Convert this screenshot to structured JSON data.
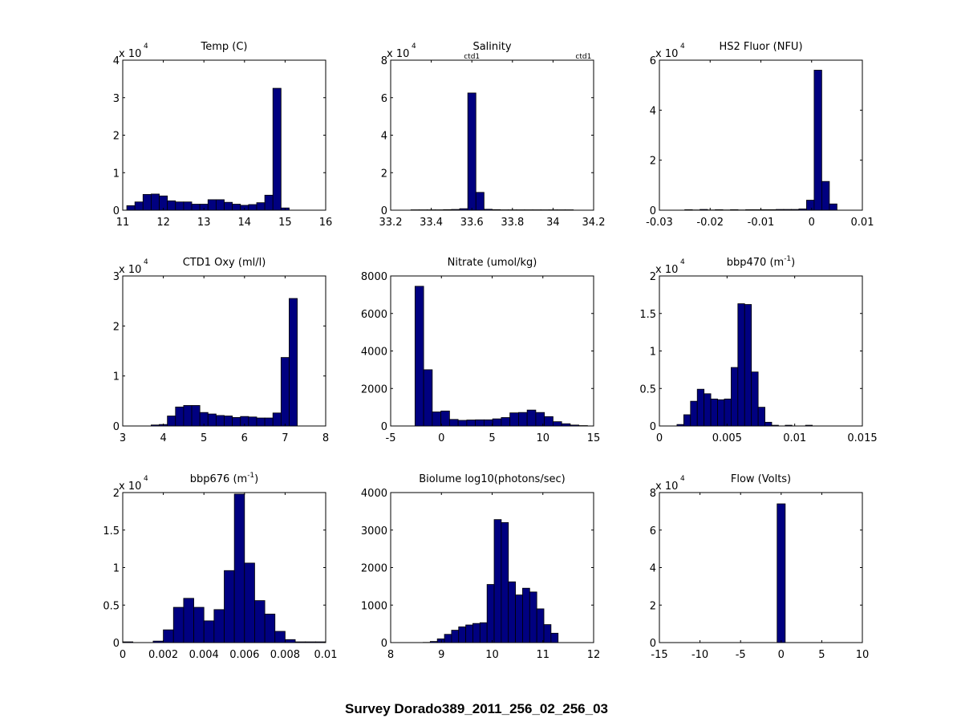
{
  "figure": {
    "supertitle": "Survey Dorado389_2011_256_02_256_03"
  },
  "chart_data": [
    {
      "type": "bar",
      "title": "Temp (C)",
      "exponent_label": "x 10",
      "exponent_power": "4",
      "xlim": [
        11,
        16
      ],
      "ylim": [
        0,
        4
      ],
      "xticks": [
        11,
        12,
        13,
        14,
        15,
        16
      ],
      "xtick_labels": [
        "11",
        "12",
        "13",
        "14",
        "15",
        "16"
      ],
      "yticks": [
        0,
        1,
        2,
        3,
        4
      ],
      "ytick_labels": [
        "0",
        "1",
        "2",
        "3",
        "4"
      ],
      "bin_edges": [
        11.1,
        11.3,
        11.5,
        11.7,
        11.9,
        12.1,
        12.3,
        12.5,
        12.7,
        12.9,
        13.1,
        13.3,
        13.5,
        13.7,
        13.9,
        14.1,
        14.3,
        14.5,
        14.7,
        14.9,
        15.1
      ],
      "values": [
        0.12,
        0.22,
        0.42,
        0.43,
        0.38,
        0.25,
        0.22,
        0.22,
        0.16,
        0.16,
        0.28,
        0.28,
        0.21,
        0.16,
        0.13,
        0.15,
        0.2,
        0.4,
        3.25,
        0.06
      ],
      "annotations": []
    },
    {
      "type": "bar",
      "title": "Salinity",
      "exponent_label": "x 10",
      "exponent_power": "4",
      "xlim": [
        33.2,
        34.2
      ],
      "ylim": [
        0,
        8
      ],
      "xticks": [
        33.2,
        33.4,
        33.6,
        33.8,
        34,
        34.2
      ],
      "xtick_labels": [
        "33.2",
        "33.4",
        "33.6",
        "33.8",
        "34",
        "34.2"
      ],
      "yticks": [
        0,
        2,
        4,
        6,
        8
      ],
      "ytick_labels": [
        "0",
        "2",
        "4",
        "6",
        "8"
      ],
      "bin_edges": [
        33.3,
        33.34,
        33.38,
        33.42,
        33.46,
        33.5,
        33.54,
        33.58,
        33.62,
        33.66,
        33.7,
        33.74,
        33.78,
        33.82,
        33.86,
        33.9,
        33.94,
        33.98,
        34.02,
        34.06,
        34.1
      ],
      "values": [
        0.02,
        0.02,
        0.02,
        0.02,
        0.03,
        0.04,
        0.08,
        6.25,
        0.95,
        0.05,
        0.03,
        0.02,
        0.02,
        0.02,
        0.02,
        0.02,
        0.02,
        0.02,
        0.02,
        0.02
      ],
      "annotations": [
        {
          "text": "ctd1",
          "x": 33.6
        },
        {
          "text": "ctd1",
          "x": 34.15
        }
      ]
    },
    {
      "type": "bar",
      "title": "HS2 Fluor (NFU)",
      "exponent_label": "x 10",
      "exponent_power": "4",
      "xlim": [
        -0.03,
        0.01
      ],
      "ylim": [
        0,
        6
      ],
      "xticks": [
        -0.03,
        -0.02,
        -0.01,
        0,
        0.01
      ],
      "xtick_labels": [
        "-0.03",
        "-0.02",
        "-0.01",
        "0",
        "0.01"
      ],
      "yticks": [
        0,
        2,
        4,
        6
      ],
      "ytick_labels": [
        "0",
        "2",
        "4",
        "6"
      ],
      "bin_edges": [
        -0.025,
        -0.0235,
        -0.022,
        -0.0205,
        -0.019,
        -0.0175,
        -0.016,
        -0.0145,
        -0.013,
        -0.0115,
        -0.01,
        -0.0085,
        -0.007,
        -0.0055,
        -0.004,
        -0.0025,
        -0.001,
        0.0005,
        0.002,
        0.0035,
        0.005
      ],
      "values": [
        0.02,
        0.01,
        0.03,
        0.01,
        0.02,
        0.01,
        0.02,
        0.01,
        0.02,
        0.02,
        0.02,
        0.02,
        0.03,
        0.03,
        0.03,
        0.05,
        0.4,
        5.6,
        1.15,
        0.25
      ],
      "annotations": []
    },
    {
      "type": "bar",
      "title": "CTD1 Oxy (ml/l)",
      "exponent_label": "x 10",
      "exponent_power": "4",
      "xlim": [
        3,
        8
      ],
      "ylim": [
        0,
        3
      ],
      "xticks": [
        3,
        4,
        5,
        6,
        7,
        8
      ],
      "xtick_labels": [
        "3",
        "4",
        "5",
        "6",
        "7",
        "8"
      ],
      "yticks": [
        0,
        1,
        2,
        3
      ],
      "ytick_labels": [
        "0",
        "1",
        "2",
        "3"
      ],
      "bin_edges": [
        3.5,
        3.7,
        3.9,
        4.1,
        4.3,
        4.5,
        4.7,
        4.9,
        5.1,
        5.3,
        5.5,
        5.7,
        5.9,
        6.1,
        6.3,
        6.5,
        6.7,
        6.9,
        7.1,
        7.3,
        7.5
      ],
      "values": [
        0.0,
        0.02,
        0.03,
        0.2,
        0.38,
        0.41,
        0.41,
        0.27,
        0.24,
        0.21,
        0.2,
        0.17,
        0.19,
        0.18,
        0.16,
        0.16,
        0.26,
        1.37,
        2.55,
        0.0
      ],
      "annotations": []
    },
    {
      "type": "bar",
      "title": "Nitrate (umol/kg)",
      "exponent_label": "",
      "exponent_power": "",
      "xlim": [
        -5,
        15
      ],
      "ylim": [
        0,
        8000
      ],
      "xticks": [
        -5,
        0,
        5,
        10,
        15
      ],
      "xtick_labels": [
        "-5",
        "0",
        "5",
        "10",
        "15"
      ],
      "yticks": [
        0,
        2000,
        4000,
        6000,
        8000
      ],
      "ytick_labels": [
        "0",
        "2000",
        "4000",
        "6000",
        "8000"
      ],
      "bin_edges": [
        -2.6,
        -1.75,
        -0.9,
        -0.05,
        0.8,
        1.65,
        2.5,
        3.35,
        4.2,
        5.05,
        5.9,
        6.75,
        7.6,
        8.45,
        9.3,
        10.15,
        11.0,
        11.85,
        12.7,
        13.55,
        14.4
      ],
      "values": [
        7450,
        3000,
        750,
        800,
        350,
        300,
        320,
        330,
        330,
        380,
        450,
        700,
        720,
        850,
        720,
        500,
        230,
        120,
        50,
        20
      ],
      "annotations": []
    },
    {
      "type": "bar",
      "title": "bbp470 (m",
      "title_sup": "-1",
      "title_tail": ")",
      "exponent_label": "x 10",
      "exponent_power": "4",
      "xlim": [
        0,
        0.015
      ],
      "ylim": [
        0,
        2
      ],
      "xticks": [
        0,
        0.005,
        0.01,
        0.015
      ],
      "xtick_labels": [
        "0",
        "0.005",
        "0.01",
        "0.015"
      ],
      "yticks": [
        0,
        0.5,
        1,
        1.5,
        2
      ],
      "ytick_labels": [
        "0",
        "0.5",
        "1",
        "1.5",
        "2"
      ],
      "bin_edges": [
        0.0008,
        0.0013,
        0.0018,
        0.0023,
        0.0028,
        0.0033,
        0.0038,
        0.0043,
        0.0048,
        0.0053,
        0.0058,
        0.0063,
        0.0068,
        0.0073,
        0.0078,
        0.0083,
        0.0088,
        0.0093,
        0.0098,
        0.0103,
        0.0108,
        0.0113,
        0.0118
      ],
      "values": [
        0,
        0.02,
        0.15,
        0.33,
        0.49,
        0.43,
        0.36,
        0.35,
        0.36,
        0.78,
        1.63,
        1.62,
        0.72,
        0.25,
        0.05,
        0.01,
        0.0,
        0.01,
        0.0,
        0.0,
        0.01,
        0.0
      ],
      "annotations": []
    },
    {
      "type": "bar",
      "title": "bbp676 (m",
      "title_sup": "-1",
      "title_tail": ")",
      "exponent_label": "x 10",
      "exponent_power": "4",
      "xlim": [
        0,
        0.01
      ],
      "ylim": [
        0,
        2
      ],
      "xticks": [
        0,
        0.002,
        0.004,
        0.006,
        0.008,
        0.01
      ],
      "xtick_labels": [
        "0",
        "0.002",
        "0.004",
        "0.006",
        "0.008",
        "0.01"
      ],
      "yticks": [
        0,
        0.5,
        1,
        1.5,
        2
      ],
      "ytick_labels": [
        "0",
        "0.5",
        "1",
        "1.5",
        "2"
      ],
      "bin_edges": [
        0.0,
        0.0005,
        0.001,
        0.0015,
        0.002,
        0.0025,
        0.003,
        0.0035,
        0.004,
        0.0045,
        0.005,
        0.0055,
        0.006,
        0.0065,
        0.007,
        0.0075,
        0.008,
        0.0085,
        0.009,
        0.0095,
        0.01
      ],
      "values": [
        0.01,
        0.0,
        0.0,
        0.02,
        0.17,
        0.47,
        0.59,
        0.47,
        0.29,
        0.44,
        0.96,
        1.98,
        1.06,
        0.56,
        0.38,
        0.15,
        0.04,
        0.01,
        0.01,
        0.01
      ],
      "annotations": []
    },
    {
      "type": "bar",
      "title": "Biolume log10(photons/sec)",
      "exponent_label": "",
      "exponent_power": "",
      "xlim": [
        8,
        12
      ],
      "ylim": [
        0,
        4000
      ],
      "xticks": [
        8,
        9,
        10,
        11,
        12
      ],
      "xtick_labels": [
        "8",
        "9",
        "10",
        "11",
        "12"
      ],
      "yticks": [
        0,
        1000,
        2000,
        3000,
        4000
      ],
      "ytick_labels": [
        "0",
        "1000",
        "2000",
        "3000",
        "4000"
      ],
      "bin_edges": [
        8.5,
        8.64,
        8.78,
        8.92,
        9.06,
        9.2,
        9.34,
        9.48,
        9.62,
        9.76,
        9.9,
        10.04,
        10.18,
        10.32,
        10.46,
        10.6,
        10.74,
        10.88,
        11.02,
        11.16,
        11.3
      ],
      "values": [
        0,
        5,
        30,
        100,
        220,
        330,
        420,
        470,
        510,
        530,
        1550,
        3280,
        3200,
        1620,
        1270,
        1450,
        1350,
        900,
        480,
        250
      ],
      "annotations": []
    },
    {
      "type": "bar",
      "title": "Flow (Volts)",
      "exponent_label": "x 10",
      "exponent_power": "4",
      "xlim": [
        -15,
        10
      ],
      "ylim": [
        0,
        8
      ],
      "xticks": [
        -15,
        -10,
        -5,
        0,
        5,
        10
      ],
      "xtick_labels": [
        "-15",
        "-10",
        "-5",
        "0",
        "5",
        "10"
      ],
      "yticks": [
        0,
        2,
        4,
        6,
        8
      ],
      "ytick_labels": [
        "0",
        "2",
        "4",
        "6",
        "8"
      ],
      "bin_edges": [
        -0.5,
        0.5
      ],
      "values": [
        7.4
      ],
      "annotations": []
    }
  ]
}
